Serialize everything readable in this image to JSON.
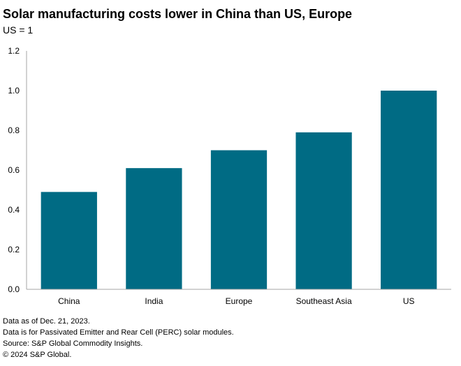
{
  "title": "Solar manufacturing costs lower in China than US, Europe",
  "subtitle": "US = 1",
  "chart_data": {
    "type": "bar",
    "categories": [
      "China",
      "India",
      "Europe",
      "Southeast Asia",
      "US"
    ],
    "values": [
      0.49,
      0.61,
      0.7,
      0.79,
      1.0
    ],
    "ylim": [
      0,
      1.2
    ],
    "yticks": [
      "0.0",
      "0.2",
      "0.4",
      "0.6",
      "0.8",
      "1.0",
      "1.2"
    ],
    "grid": false,
    "bar_color": "#006b84"
  },
  "notes": [
    "Data as of Dec. 21, 2023.",
    "Data is for Passivated Emitter and Rear Cell (PERC) solar modules.",
    "Source: S&P Global Commodity Insights.",
    "© 2024 S&P Global."
  ]
}
